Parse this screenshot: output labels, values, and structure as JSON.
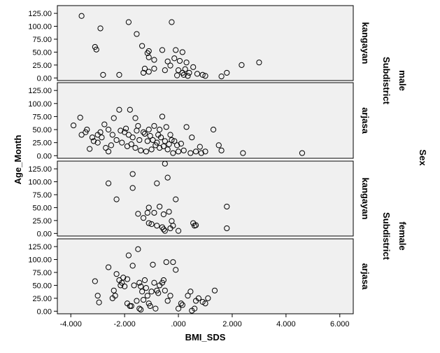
{
  "chart_data": {
    "type": "scatter",
    "xlabel": "BMI_SDS",
    "ylabel": "Age_Month",
    "xlim": [
      -4.5,
      6.5
    ],
    "ylim": [
      -5,
      140
    ],
    "xticks": [
      "-4.000",
      "-2.000",
      ".000",
      "2.000",
      "4.000",
      "6.000"
    ],
    "xtick_values": [
      -4,
      -2,
      0,
      2,
      4,
      6
    ],
    "yticks": [
      "0.00",
      "25.00",
      "50.00",
      "75.00",
      "100.00",
      "125.00"
    ],
    "ytick_values": [
      0,
      25,
      50,
      75,
      100,
      125
    ],
    "row_facet_outer": "Sex",
    "row_facet_inner": "Subdistrict",
    "grid": false,
    "panels": [
      {
        "sex": "male",
        "subdistrict": "kangayan",
        "points": [
          [
            -3.6,
            120
          ],
          [
            -2.9,
            96
          ],
          [
            -3.1,
            60
          ],
          [
            -3.05,
            55
          ],
          [
            -1.85,
            108
          ],
          [
            -1.55,
            85
          ],
          [
            -1.35,
            62
          ],
          [
            -1.1,
            52
          ],
          [
            -1.15,
            48
          ],
          [
            -1.1,
            40
          ],
          [
            -0.9,
            35
          ],
          [
            -0.6,
            54
          ],
          [
            -0.25,
            108
          ],
          [
            -0.1,
            54
          ],
          [
            0.15,
            50
          ],
          [
            -0.4,
            32
          ],
          [
            -0.3,
            24
          ],
          [
            -0.15,
            38
          ],
          [
            0.05,
            33
          ],
          [
            0.3,
            30
          ],
          [
            0.55,
            21
          ],
          [
            0.25,
            17
          ],
          [
            -0.5,
            15
          ],
          [
            0.0,
            15
          ],
          [
            0.4,
            10
          ],
          [
            0.7,
            8
          ],
          [
            0.35,
            4
          ],
          [
            -0.9,
            18
          ],
          [
            -1.25,
            18
          ],
          [
            -1.1,
            12
          ],
          [
            -1.3,
            10
          ],
          [
            -2.8,
            6
          ],
          [
            -2.2,
            6
          ],
          [
            1.0,
            4
          ],
          [
            1.6,
            3
          ],
          [
            1.8,
            10
          ],
          [
            2.35,
            25
          ],
          [
            3.0,
            30
          ],
          [
            0.15,
            10
          ],
          [
            -0.05,
            5
          ],
          [
            0.2,
            6
          ],
          [
            0.9,
            6
          ]
        ]
      },
      {
        "sex": "male",
        "subdistrict": "arjasa",
        "points": [
          [
            -3.9,
            58
          ],
          [
            -3.65,
            73
          ],
          [
            -3.4,
            50
          ],
          [
            -3.45,
            45
          ],
          [
            -3.6,
            40
          ],
          [
            -3.2,
            35
          ],
          [
            -3.0,
            40
          ],
          [
            -2.9,
            45
          ],
          [
            -2.75,
            60
          ],
          [
            -2.4,
            72
          ],
          [
            -2.2,
            88
          ],
          [
            -1.8,
            88
          ],
          [
            -1.6,
            72
          ],
          [
            -1.5,
            57
          ],
          [
            -1.3,
            45
          ],
          [
            -1.1,
            50
          ],
          [
            -0.9,
            57
          ],
          [
            -0.7,
            50
          ],
          [
            -0.6,
            75
          ],
          [
            -0.45,
            55
          ],
          [
            -0.3,
            40
          ],
          [
            -0.15,
            28
          ],
          [
            -0.05,
            20
          ],
          [
            0.1,
            23
          ],
          [
            0.3,
            55
          ],
          [
            0.5,
            35
          ],
          [
            0.8,
            17
          ],
          [
            1.0,
            8
          ],
          [
            1.3,
            50
          ],
          [
            1.5,
            20
          ],
          [
            1.6,
            10
          ],
          [
            2.4,
            5
          ],
          [
            4.6,
            5
          ],
          [
            -3.3,
            13
          ],
          [
            -3.0,
            25
          ],
          [
            -2.7,
            15
          ],
          [
            -2.6,
            8
          ],
          [
            -2.5,
            20
          ],
          [
            -2.3,
            30
          ],
          [
            -2.1,
            25
          ],
          [
            -1.9,
            18
          ],
          [
            -1.75,
            22
          ],
          [
            -1.6,
            15
          ],
          [
            -1.4,
            10
          ],
          [
            -1.2,
            8
          ],
          [
            -1.0,
            12
          ],
          [
            -0.85,
            20
          ],
          [
            -0.7,
            15
          ],
          [
            -0.55,
            18
          ],
          [
            -0.4,
            12
          ],
          [
            -0.2,
            5
          ],
          [
            0.0,
            8
          ],
          [
            0.2,
            10
          ],
          [
            0.45,
            5
          ],
          [
            0.65,
            8
          ],
          [
            0.85,
            5
          ],
          [
            -2.0,
            45
          ],
          [
            -1.85,
            40
          ],
          [
            -1.7,
            35
          ],
          [
            -1.45,
            30
          ],
          [
            -1.25,
            42
          ],
          [
            -1.05,
            38
          ],
          [
            -0.95,
            30
          ],
          [
            -0.8,
            25
          ],
          [
            -0.65,
            35
          ],
          [
            -0.5,
            28
          ],
          [
            -0.35,
            22
          ],
          [
            -2.6,
            50
          ],
          [
            -2.85,
            35
          ],
          [
            -3.15,
            28
          ],
          [
            -2.45,
            40
          ],
          [
            -2.15,
            48
          ],
          [
            -1.95,
            52
          ],
          [
            -1.55,
            48
          ],
          [
            -1.15,
            28
          ],
          [
            -0.75,
            40
          ],
          [
            -0.25,
            30
          ]
        ]
      },
      {
        "sex": "female",
        "subdistrict": "kangayan",
        "points": [
          [
            -2.6,
            97
          ],
          [
            -2.3,
            66
          ],
          [
            -1.7,
            115
          ],
          [
            -1.7,
            88
          ],
          [
            -1.5,
            38
          ],
          [
            -1.3,
            30
          ],
          [
            -1.15,
            40
          ],
          [
            -1.1,
            50
          ],
          [
            -1.0,
            18
          ],
          [
            -0.9,
            40
          ],
          [
            -0.8,
            97
          ],
          [
            -0.7,
            52
          ],
          [
            -0.55,
            37
          ],
          [
            -0.5,
            135
          ],
          [
            -0.4,
            108
          ],
          [
            -0.35,
            42
          ],
          [
            -0.25,
            24
          ],
          [
            -0.1,
            66
          ],
          [
            -0.6,
            12
          ],
          [
            -0.55,
            8
          ],
          [
            -0.3,
            10
          ],
          [
            -0.2,
            15
          ],
          [
            0.0,
            5
          ],
          [
            0.55,
            20
          ],
          [
            0.6,
            15
          ],
          [
            0.65,
            16
          ],
          [
            1.8,
            52
          ],
          [
            1.8,
            10
          ],
          [
            -0.8,
            15
          ],
          [
            -1.1,
            20
          ],
          [
            -0.5,
            5
          ]
        ]
      },
      {
        "sex": "female",
        "subdistrict": "arjasa",
        "points": [
          [
            -3.1,
            58
          ],
          [
            -3.0,
            30
          ],
          [
            -2.95,
            17
          ],
          [
            -2.6,
            85
          ],
          [
            -2.4,
            40
          ],
          [
            -2.35,
            30
          ],
          [
            -2.3,
            72
          ],
          [
            -2.2,
            60
          ],
          [
            -2.1,
            55
          ],
          [
            -2.05,
            65
          ],
          [
            -2.0,
            48
          ],
          [
            -1.9,
            62
          ],
          [
            -1.85,
            108
          ],
          [
            -1.75,
            10
          ],
          [
            -1.7,
            88
          ],
          [
            -1.65,
            50
          ],
          [
            -1.5,
            120
          ],
          [
            -1.45,
            55
          ],
          [
            -1.4,
            48
          ],
          [
            -1.35,
            38
          ],
          [
            -1.3,
            22
          ],
          [
            -1.25,
            60
          ],
          [
            -1.2,
            45
          ],
          [
            -1.15,
            30
          ],
          [
            -1.1,
            15
          ],
          [
            -1.0,
            38
          ],
          [
            -0.95,
            90
          ],
          [
            -0.9,
            55
          ],
          [
            -0.8,
            40
          ],
          [
            -0.75,
            35
          ],
          [
            -0.7,
            50
          ],
          [
            -0.6,
            55
          ],
          [
            -0.55,
            60
          ],
          [
            -0.5,
            40
          ],
          [
            -0.45,
            95
          ],
          [
            -0.4,
            20
          ],
          [
            -0.2,
            95
          ],
          [
            -0.1,
            80
          ],
          [
            0.0,
            5
          ],
          [
            0.1,
            15
          ],
          [
            0.15,
            12
          ],
          [
            0.35,
            30
          ],
          [
            0.45,
            38
          ],
          [
            0.6,
            5
          ],
          [
            0.65,
            20
          ],
          [
            0.75,
            25
          ],
          [
            0.9,
            18
          ],
          [
            1.0,
            15
          ],
          [
            1.1,
            25
          ],
          [
            1.35,
            40
          ],
          [
            0.5,
            1
          ],
          [
            -0.3,
            30
          ],
          [
            -1.55,
            20
          ],
          [
            -1.8,
            10
          ],
          [
            -1.9,
            15
          ],
          [
            -2.15,
            50
          ],
          [
            -1.45,
            5
          ],
          [
            -1.4,
            3
          ],
          [
            -1.05,
            10
          ],
          [
            -0.85,
            5
          ],
          [
            -2.45,
            25
          ]
        ]
      }
    ]
  },
  "labels": {
    "sex_title": "Sex",
    "subdistrict_title": "Subdistrict",
    "sex_values": [
      "male",
      "female"
    ],
    "subdistrict_values": [
      "kangayan",
      "arjasa",
      "kangayan",
      "arjasa"
    ]
  }
}
